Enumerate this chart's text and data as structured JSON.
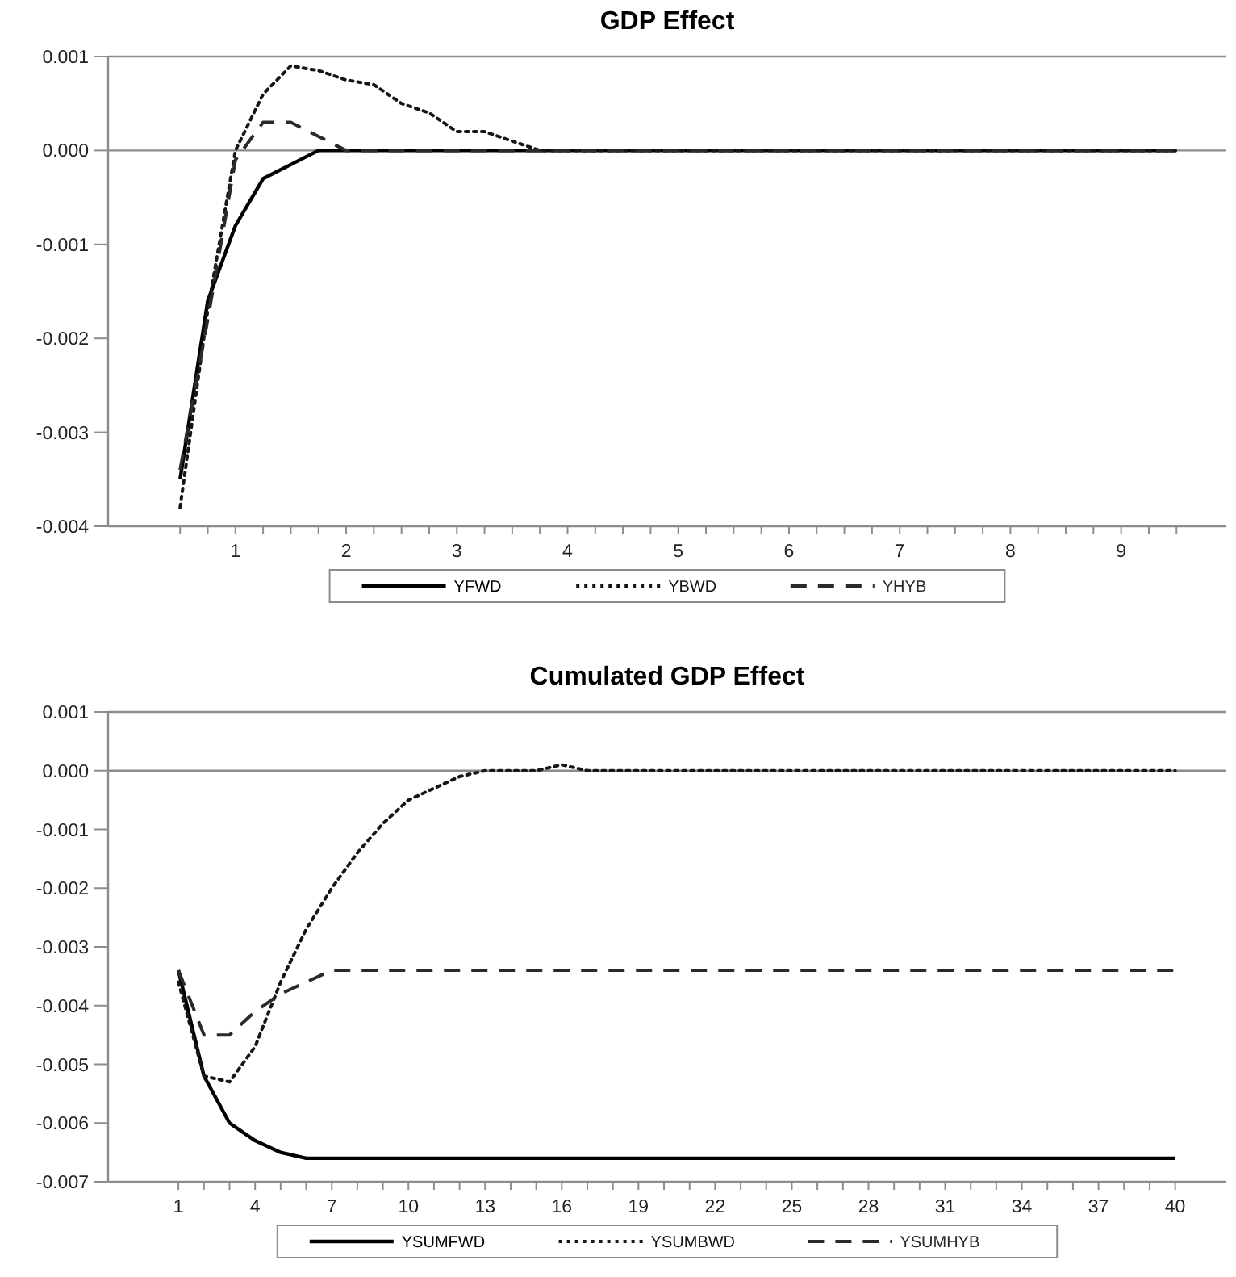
{
  "chart_data": [
    {
      "type": "line",
      "title": "GDP Effect",
      "x": [
        1,
        1.25,
        1.5,
        1.75,
        2,
        2.25,
        2.5,
        2.75,
        3,
        3.25,
        3.5,
        3.75,
        4,
        4.25,
        4.5,
        4.75,
        5,
        5.25,
        5.5,
        5.75,
        6,
        6.25,
        6.5,
        6.75,
        7,
        7.25,
        7.5,
        7.75,
        8,
        8.25,
        8.5,
        8.75,
        9,
        9.25,
        9.5,
        9.75,
        10
      ],
      "series": [
        {
          "name": "YFWD",
          "color": "#000000",
          "line_style": "solid",
          "values": [
            -0.0035,
            -0.0016,
            -0.0008,
            -0.0003,
            -0.00015,
            0,
            0,
            0,
            0,
            0,
            0,
            0,
            0,
            0,
            0,
            0,
            0,
            0,
            0,
            0,
            0,
            0,
            0,
            0,
            0,
            0,
            0,
            0,
            0,
            0,
            0,
            0,
            0,
            0,
            0,
            0,
            0
          ]
        },
        {
          "name": "YBWD",
          "color": "#161616",
          "line_style": "dotted",
          "values": [
            -0.0038,
            -0.0017,
            0,
            0.0006,
            0.0009,
            0.00085,
            0.00075,
            0.0007,
            0.0005,
            0.0004,
            0.0002,
            0.0002,
            0.0001,
            0,
            0,
            0,
            0,
            0,
            0,
            0,
            0,
            0,
            0,
            0,
            0,
            0,
            0,
            0,
            0,
            0,
            0,
            0,
            0,
            0,
            0,
            0,
            0
          ]
        },
        {
          "name": "YHYB",
          "color": "#2a2a2a",
          "line_style": "dashed",
          "values": [
            -0.0034,
            -0.0018,
            -0.0001,
            0.0003,
            0.0003,
            0.00015,
            0,
            0,
            0,
            0,
            0,
            0,
            0,
            0,
            0,
            0,
            0,
            0,
            0,
            0,
            0,
            0,
            0,
            0,
            0,
            0,
            0,
            0,
            0,
            0,
            0,
            0,
            0,
            0,
            0,
            0,
            0
          ]
        }
      ],
      "xlim": [
        0.35,
        10.45
      ],
      "ylim": [
        -0.004,
        0.001
      ],
      "yticks": [
        {
          "value": -0.004,
          "label": "-0.004"
        },
        {
          "value": -0.003,
          "label": "-0.003"
        },
        {
          "value": -0.002,
          "label": "-0.002"
        },
        {
          "value": -0.001,
          "label": "-0.001"
        },
        {
          "value": 0,
          "label": "0.000"
        },
        {
          "value": 0.001,
          "label": "0.001"
        }
      ],
      "xticks": [
        {
          "value": 1,
          "label": null
        },
        {
          "value": 1.25,
          "label": null
        },
        {
          "value": 1.5,
          "label": "1"
        },
        {
          "value": 1.75,
          "label": null
        },
        {
          "value": 2,
          "label": null
        },
        {
          "value": 2.25,
          "label": null
        },
        {
          "value": 2.5,
          "label": "2"
        },
        {
          "value": 2.75,
          "label": null
        },
        {
          "value": 3,
          "label": null
        },
        {
          "value": 3.25,
          "label": null
        },
        {
          "value": 3.5,
          "label": "3"
        },
        {
          "value": 3.75,
          "label": null
        },
        {
          "value": 4,
          "label": null
        },
        {
          "value": 4.25,
          "label": null
        },
        {
          "value": 4.5,
          "label": "4"
        },
        {
          "value": 4.75,
          "label": null
        },
        {
          "value": 5,
          "label": null
        },
        {
          "value": 5.25,
          "label": null
        },
        {
          "value": 5.5,
          "label": "5"
        },
        {
          "value": 5.75,
          "label": null
        },
        {
          "value": 6,
          "label": null
        },
        {
          "value": 6.25,
          "label": null
        },
        {
          "value": 6.5,
          "label": "6"
        },
        {
          "value": 6.75,
          "label": null
        },
        {
          "value": 7,
          "label": null
        },
        {
          "value": 7.25,
          "label": null
        },
        {
          "value": 7.5,
          "label": "7"
        },
        {
          "value": 7.75,
          "label": null
        },
        {
          "value": 8,
          "label": null
        },
        {
          "value": 8.25,
          "label": null
        },
        {
          "value": 8.5,
          "label": "8"
        },
        {
          "value": 8.75,
          "label": null
        },
        {
          "value": 9,
          "label": null
        },
        {
          "value": 9.25,
          "label": null
        },
        {
          "value": 9.5,
          "label": "9"
        },
        {
          "value": 9.75,
          "label": null
        },
        {
          "value": 10,
          "label": null
        }
      ],
      "ref_lines": [
        {
          "axis": "y",
          "value": 0,
          "color": "#8c8c8c"
        }
      ],
      "legend": "bottom"
    },
    {
      "type": "line",
      "title": "Cumulated GDP Effect",
      "x": [
        1,
        2,
        3,
        4,
        5,
        6,
        7,
        8,
        9,
        10,
        11,
        12,
        13,
        14,
        15,
        16,
        17,
        18,
        19,
        20,
        21,
        22,
        23,
        24,
        25,
        26,
        27,
        28,
        29,
        30,
        31,
        32,
        33,
        34,
        35,
        36,
        37,
        38,
        39,
        40
      ],
      "series": [
        {
          "name": "YSUMFWD",
          "color": "#000000",
          "line_style": "solid",
          "values": [
            -0.0034,
            -0.0052,
            -0.006,
            -0.0063,
            -0.0065,
            -0.0066,
            -0.0066,
            -0.0066,
            -0.0066,
            -0.0066,
            -0.0066,
            -0.0066,
            -0.0066,
            -0.0066,
            -0.0066,
            -0.0066,
            -0.0066,
            -0.0066,
            -0.0066,
            -0.0066,
            -0.0066,
            -0.0066,
            -0.0066,
            -0.0066,
            -0.0066,
            -0.0066,
            -0.0066,
            -0.0066,
            -0.0066,
            -0.0066,
            -0.0066,
            -0.0066,
            -0.0066,
            -0.0066,
            -0.0066,
            -0.0066,
            -0.0066,
            -0.0066,
            -0.0066,
            -0.0066
          ]
        },
        {
          "name": "YSUMBWD",
          "color": "#161616",
          "line_style": "dotted",
          "values": [
            -0.0036,
            -0.0052,
            -0.0053,
            -0.0047,
            -0.0036,
            -0.0027,
            -0.002,
            -0.0014,
            -0.0009,
            -0.0005,
            -0.0003,
            -0.0001,
            0,
            0,
            0,
            0.0001,
            0,
            0,
            0,
            0,
            0,
            0,
            0,
            0,
            0,
            0,
            0,
            0,
            0,
            0,
            0,
            0,
            0,
            0,
            0,
            0,
            0,
            0,
            0,
            0
          ]
        },
        {
          "name": "YSUMHYB",
          "color": "#2a2a2a",
          "line_style": "dashed",
          "values": [
            -0.0034,
            -0.0045,
            -0.0045,
            -0.0041,
            -0.0038,
            -0.0036,
            -0.0034,
            -0.0034,
            -0.0034,
            -0.0034,
            -0.0034,
            -0.0034,
            -0.0034,
            -0.0034,
            -0.0034,
            -0.0034,
            -0.0034,
            -0.0034,
            -0.0034,
            -0.0034,
            -0.0034,
            -0.0034,
            -0.0034,
            -0.0034,
            -0.0034,
            -0.0034,
            -0.0034,
            -0.0034,
            -0.0034,
            -0.0034,
            -0.0034,
            -0.0034,
            -0.0034,
            -0.0034,
            -0.0034,
            -0.0034,
            -0.0034,
            -0.0034,
            -0.0034,
            -0.0034
          ]
        }
      ],
      "xlim": [
        -1.75,
        42
      ],
      "ylim": [
        -0.007,
        0.001
      ],
      "yticks": [
        {
          "value": -0.007,
          "label": "-0.007"
        },
        {
          "value": -0.006,
          "label": "-0.006"
        },
        {
          "value": -0.005,
          "label": "-0.005"
        },
        {
          "value": -0.004,
          "label": "-0.004"
        },
        {
          "value": -0.003,
          "label": "-0.003"
        },
        {
          "value": -0.002,
          "label": "-0.002"
        },
        {
          "value": -0.001,
          "label": "-0.001"
        },
        {
          "value": 0,
          "label": "0.000"
        },
        {
          "value": 0.001,
          "label": "0.001"
        }
      ],
      "xticks": [
        1,
        {
          "value": 2,
          "label": null
        },
        {
          "value": 3,
          "label": null
        },
        4,
        {
          "value": 5,
          "label": null
        },
        {
          "value": 6,
          "label": null
        },
        7,
        {
          "value": 8,
          "label": null
        },
        {
          "value": 9,
          "label": null
        },
        10,
        {
          "value": 11,
          "label": null
        },
        {
          "value": 12,
          "label": null
        },
        13,
        {
          "value": 14,
          "label": null
        },
        {
          "value": 15,
          "label": null
        },
        16,
        {
          "value": 17,
          "label": null
        },
        {
          "value": 18,
          "label": null
        },
        19,
        {
          "value": 20,
          "label": null
        },
        {
          "value": 21,
          "label": null
        },
        22,
        {
          "value": 23,
          "label": null
        },
        {
          "value": 24,
          "label": null
        },
        25,
        {
          "value": 26,
          "label": null
        },
        {
          "value": 27,
          "label": null
        },
        28,
        {
          "value": 29,
          "label": null
        },
        {
          "value": 30,
          "label": null
        },
        31,
        {
          "value": 32,
          "label": null
        },
        {
          "value": 33,
          "label": null
        },
        34,
        {
          "value": 35,
          "label": null
        },
        {
          "value": 36,
          "label": null
        },
        37,
        {
          "value": 38,
          "label": null
        },
        {
          "value": 39,
          "label": null
        },
        40
      ],
      "ref_lines": [
        {
          "axis": "y",
          "value": 0,
          "color": "#8c8c8c"
        }
      ],
      "legend": "bottom"
    }
  ]
}
